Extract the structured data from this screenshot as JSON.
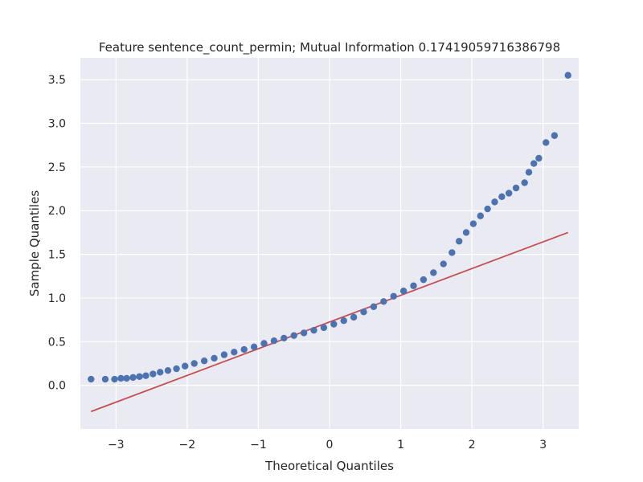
{
  "chart_data": {
    "type": "scatter",
    "title": "Feature sentence_count_permin; Mutual Information 0.17419059716386798",
    "xlabel": "Theoretical Quantiles",
    "ylabel": "Sample Quantiles",
    "xlim": [
      -3.5,
      3.5
    ],
    "ylim": [
      -0.5,
      3.75
    ],
    "xticks": [
      -3,
      -2,
      -1,
      0,
      1,
      2,
      3
    ],
    "xtick_labels": [
      "−3",
      "−2",
      "−1",
      "0",
      "1",
      "2",
      "3"
    ],
    "yticks": [
      0.0,
      0.5,
      1.0,
      1.5,
      2.0,
      2.5,
      3.0,
      3.5
    ],
    "ytick_labels": [
      "0.0",
      "0.5",
      "1.0",
      "1.5",
      "2.0",
      "2.5",
      "3.0",
      "3.5"
    ],
    "grid": true,
    "colors": {
      "background": "#eaeaf2",
      "grid": "#ffffff",
      "points": "#4c72b0",
      "reference_line": "#c44e52"
    },
    "series": [
      {
        "kind": "points",
        "x": [
          -3.35,
          -3.15,
          -3.02,
          -2.93,
          -2.85,
          -2.76,
          -2.67,
          -2.58,
          -2.48,
          -2.38,
          -2.27,
          -2.15,
          -2.03,
          -1.9,
          -1.76,
          -1.62,
          -1.48,
          -1.34,
          -1.2,
          -1.06,
          -0.92,
          -0.78,
          -0.64,
          -0.5,
          -0.36,
          -0.22,
          -0.08,
          0.06,
          0.2,
          0.34,
          0.48,
          0.62,
          0.76,
          0.9,
          1.04,
          1.18,
          1.32,
          1.46,
          1.6,
          1.72,
          1.82,
          1.92,
          2.02,
          2.12,
          2.22,
          2.32,
          2.42,
          2.52,
          2.62,
          2.74,
          2.8,
          2.87,
          2.94,
          3.04,
          3.16,
          3.35
        ],
        "y": [
          0.07,
          0.07,
          0.07,
          0.08,
          0.08,
          0.09,
          0.1,
          0.11,
          0.13,
          0.15,
          0.17,
          0.19,
          0.22,
          0.25,
          0.28,
          0.31,
          0.35,
          0.38,
          0.41,
          0.44,
          0.48,
          0.51,
          0.54,
          0.57,
          0.6,
          0.63,
          0.66,
          0.7,
          0.74,
          0.78,
          0.84,
          0.9,
          0.96,
          1.02,
          1.08,
          1.14,
          1.21,
          1.29,
          1.39,
          1.52,
          1.65,
          1.75,
          1.85,
          1.94,
          2.02,
          2.1,
          2.16,
          2.2,
          2.26,
          2.32,
          2.44,
          2.54,
          2.6,
          2.78,
          2.86,
          3.55
        ]
      },
      {
        "kind": "line",
        "x": [
          -3.35,
          3.35
        ],
        "y": [
          -0.3,
          1.75
        ]
      }
    ]
  }
}
